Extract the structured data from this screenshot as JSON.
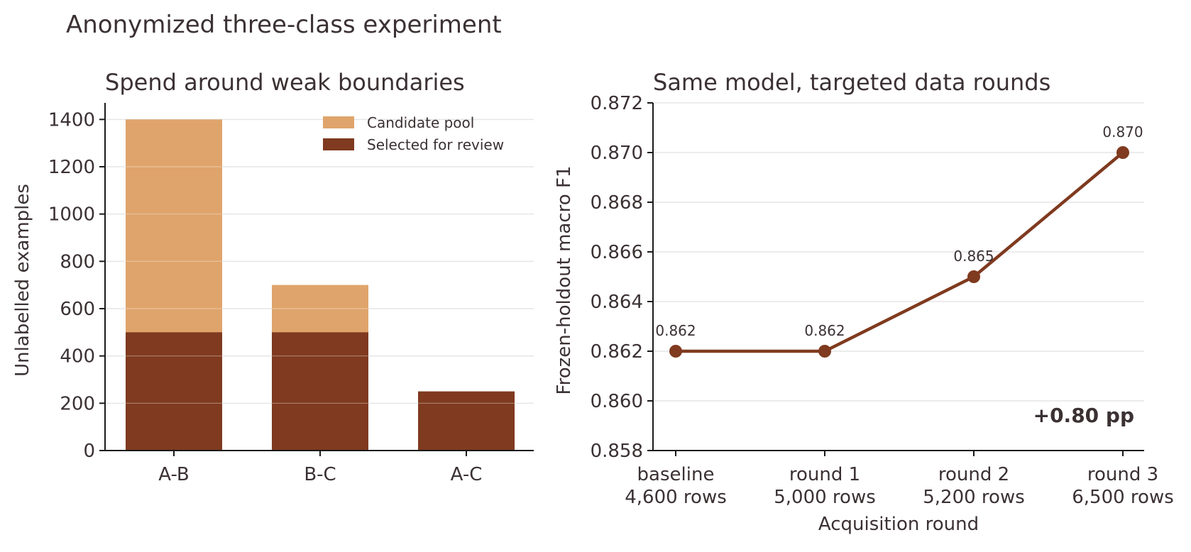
{
  "figure_title": "Anonymized three-class experiment",
  "colors": {
    "pool": "#dfa46b",
    "selected": "#7f3a1f",
    "line": "#7f3a1f",
    "text": "#3b3133",
    "grid": "#e6e6e6"
  },
  "chart_data": [
    {
      "type": "bar",
      "stacked": "overlay",
      "title": "Spend around weak boundaries",
      "xlabel": "",
      "ylabel": "Unlabelled examples",
      "categories": [
        "A-B",
        "B-C",
        "A-C"
      ],
      "series": [
        {
          "name": "Candidate pool",
          "values": [
            1400,
            700,
            250
          ]
        },
        {
          "name": "Selected for review",
          "values": [
            500,
            500,
            250
          ]
        }
      ],
      "ylim": [
        0,
        1470
      ],
      "yticks": [
        0,
        200,
        400,
        600,
        800,
        1000,
        1200,
        1400
      ],
      "grid": "y",
      "legend": "top-right"
    },
    {
      "type": "line",
      "title": "Same model, targeted data rounds",
      "xlabel": "Acquisition round",
      "ylabel": "Frozen-holdout macro F1",
      "categories": [
        [
          "baseline",
          "4,600 rows"
        ],
        [
          "round 1",
          "5,000 rows"
        ],
        [
          "round 2",
          "5,200 rows"
        ],
        [
          "round 3",
          "6,500 rows"
        ]
      ],
      "values": [
        0.862,
        0.862,
        0.865,
        0.87
      ],
      "point_labels": [
        "0.862",
        "0.862",
        "0.865",
        "0.870"
      ],
      "ylim": [
        0.858,
        0.872
      ],
      "yticks": [
        "0.858",
        "0.860",
        "0.862",
        "0.864",
        "0.866",
        "0.868",
        "0.870",
        "0.872"
      ],
      "grid": "y",
      "annotation": "+0.80 pp"
    }
  ]
}
